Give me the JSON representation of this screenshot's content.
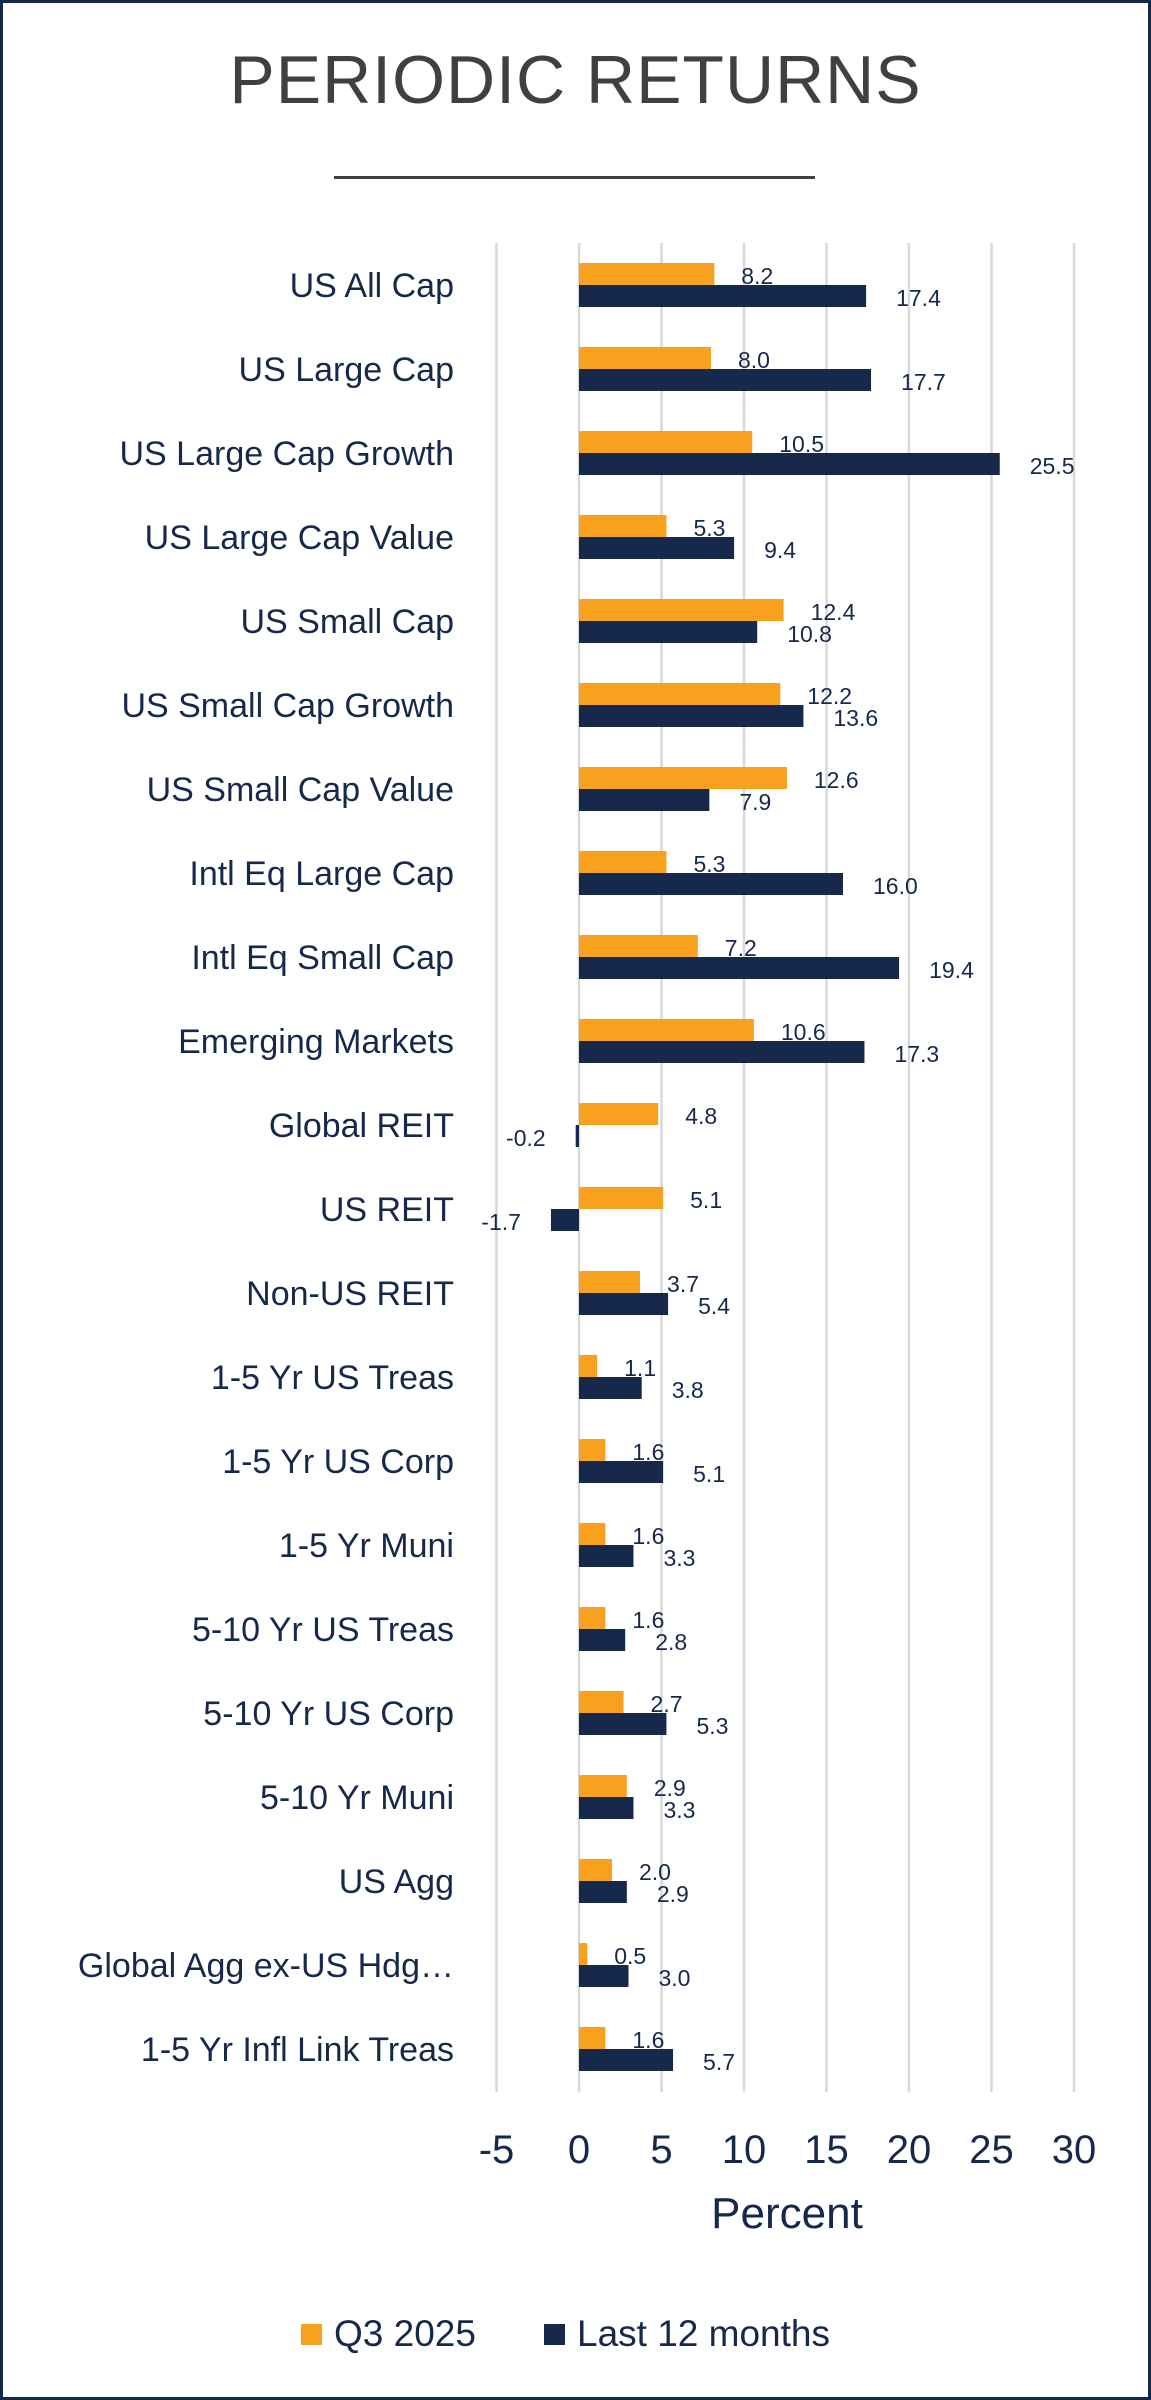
{
  "chart_data": {
    "type": "bar",
    "orientation": "horizontal",
    "title": "PERIODIC RETURNS",
    "xlabel": "Percent",
    "ylabel": "",
    "xlim": [
      -5,
      30
    ],
    "xticks": [
      -5,
      0,
      5,
      10,
      15,
      20,
      25,
      30
    ],
    "xtick_labels": [
      "-5",
      "0",
      "5",
      "10",
      "15",
      "20",
      "25",
      "30"
    ],
    "grid": "vertical",
    "legend_position": "bottom",
    "categories": [
      "US All Cap",
      "US Large Cap",
      "US Large Cap Growth",
      "US Large Cap Value",
      "US Small Cap",
      "US Small Cap Growth",
      "US Small Cap Value",
      "Intl Eq Large Cap",
      "Intl Eq Small Cap",
      "Emerging Markets",
      "Global REIT",
      "US REIT",
      "Non-US REIT",
      "1-5 Yr US Treas",
      "1-5 Yr US Corp",
      "1-5 Yr Muni",
      "5-10 Yr US Treas",
      "5-10 Yr US Corp",
      "5-10 Yr Muni",
      "US Agg",
      "Global Agg ex-US Hdg…",
      "1-5 Yr Infl Link Treas"
    ],
    "series": [
      {
        "name": "Q3 2025",
        "color": "#F7A11F",
        "values": [
          8.2,
          8.0,
          10.5,
          5.3,
          12.4,
          12.2,
          12.6,
          5.3,
          7.2,
          10.6,
          4.8,
          5.1,
          3.7,
          1.1,
          1.6,
          1.6,
          1.6,
          2.7,
          2.9,
          2.0,
          0.5,
          1.6
        ],
        "labels": [
          "8.2",
          "8.0",
          "10.5",
          "5.3",
          "12.4",
          "12.2",
          "12.6",
          "5.3",
          "7.2",
          "10.6",
          "4.8",
          "5.1",
          "3.7",
          "1.1",
          "1.6",
          "1.6",
          "1.6",
          "2.7",
          "2.9",
          "2.0",
          "0.5",
          "1.6"
        ]
      },
      {
        "name": "Last 12 months",
        "color": "#17294B",
        "values": [
          17.4,
          17.7,
          25.5,
          9.4,
          10.8,
          13.6,
          7.9,
          16.0,
          19.4,
          17.3,
          -0.2,
          -1.7,
          5.4,
          3.8,
          5.1,
          3.3,
          2.8,
          5.3,
          3.3,
          2.9,
          3.0,
          5.7
        ],
        "labels": [
          "17.4",
          "17.7",
          "25.5",
          "9.4",
          "10.8",
          "13.6",
          "7.9",
          "16.0",
          "19.4",
          "17.3",
          "-0.2",
          "-1.7",
          "5.4",
          "3.8",
          "5.1",
          "3.3",
          "2.8",
          "5.3",
          "3.3",
          "2.9",
          "3.0",
          "5.7"
        ]
      }
    ]
  },
  "colors": {
    "border": "#17294B",
    "title": "#404040",
    "text": "#17294B",
    "grid": "#D9D9D9"
  }
}
